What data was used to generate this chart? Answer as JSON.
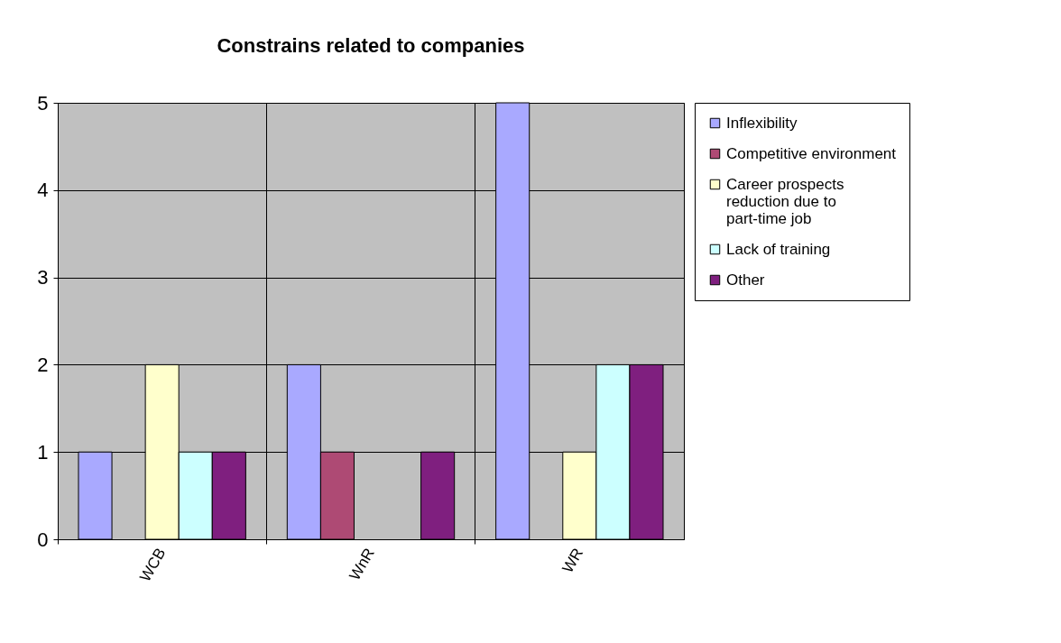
{
  "chart_data": {
    "type": "bar",
    "title": "Constrains related to companies",
    "categories": [
      "WCB",
      "WnR",
      "WR"
    ],
    "series": [
      {
        "name": "Inflexibility",
        "color": "#a9a9ff",
        "values": [
          1,
          2,
          5
        ]
      },
      {
        "name": "Competitive environment",
        "color": "#ae4a74",
        "values": [
          0,
          1,
          0
        ]
      },
      {
        "name": "Career prospects reduction due to part-time job",
        "color": "#ffffcc",
        "values": [
          2,
          0,
          1
        ]
      },
      {
        "name": "Lack of training",
        "color": "#ccffff",
        "values": [
          1,
          0,
          2
        ]
      },
      {
        "name": "Other",
        "color": "#7f1f7f",
        "values": [
          1,
          1,
          2
        ]
      }
    ],
    "ylim": [
      0,
      5
    ],
    "yticks": [
      0,
      1,
      2,
      3,
      4,
      5
    ],
    "grid": true,
    "legend": "right"
  }
}
